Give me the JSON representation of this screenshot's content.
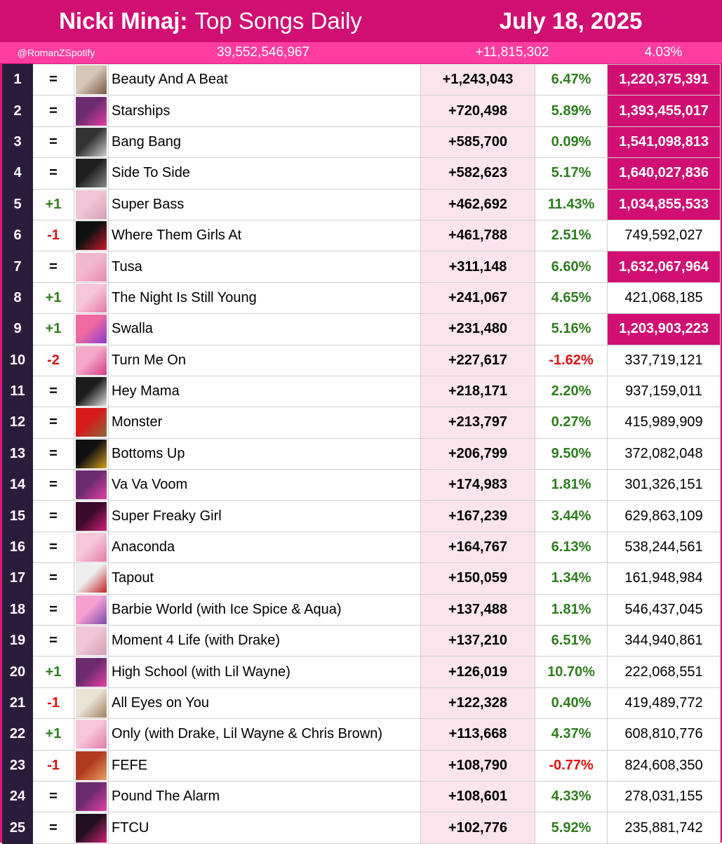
{
  "header": {
    "artist": "Nicki Minaj:",
    "title": "Top Songs Daily",
    "date": "July 18, 2025",
    "handle": "@RomanZSpotify",
    "total_streams": "39,552,546,967",
    "total_gain": "+11,815,302",
    "total_pct": "4.03%"
  },
  "colors": {
    "header": "#d10f72",
    "subheader": "#ff3da0",
    "rank_bg": "#2a1d3c",
    "daily_bg": "#fce4ec",
    "billion_highlight": "#d10f72",
    "up": "#2e7d1e",
    "down": "#e01010"
  },
  "rows": [
    {
      "rank": "1",
      "move": "=",
      "title": "Beauty And A Beat",
      "daily": "+1,243,043",
      "change": "6.47%",
      "total": "1,220,375,391",
      "billion": true,
      "cover": "cover-beauty-and-a-beat"
    },
    {
      "rank": "2",
      "move": "=",
      "title": "Starships",
      "daily": "+720,498",
      "change": "5.89%",
      "total": "1,393,455,017",
      "billion": true,
      "cover": "cover-pink-friday-re-up"
    },
    {
      "rank": "3",
      "move": "=",
      "title": "Bang Bang",
      "daily": "+585,700",
      "change": "0.09%",
      "total": "1,541,098,813",
      "billion": true,
      "cover": "cover-bang-bang"
    },
    {
      "rank": "4",
      "move": "=",
      "title": "Side To Side",
      "daily": "+582,623",
      "change": "5.17%",
      "total": "1,640,027,836",
      "billion": true,
      "cover": "cover-side-to-side"
    },
    {
      "rank": "5",
      "move": "+1",
      "title": "Super Bass",
      "daily": "+462,692",
      "change": "11.43%",
      "total": "1,034,855,533",
      "billion": true,
      "cover": "cover-pink-friday"
    },
    {
      "rank": "6",
      "move": "-1",
      "title": "Where Them Girls At",
      "daily": "+461,788",
      "change": "2.51%",
      "total": "749,592,027",
      "billion": false,
      "cover": "cover-where-them-girls-at"
    },
    {
      "rank": "7",
      "move": "=",
      "title": "Tusa",
      "daily": "+311,148",
      "change": "6.60%",
      "total": "1,632,067,964",
      "billion": true,
      "cover": "cover-tusa"
    },
    {
      "rank": "8",
      "move": "+1",
      "title": "The Night Is Still Young",
      "daily": "+241,067",
      "change": "4.65%",
      "total": "421,068,185",
      "billion": false,
      "cover": "cover-pinkprint"
    },
    {
      "rank": "9",
      "move": "+1",
      "title": "Swalla",
      "daily": "+231,480",
      "change": "5.16%",
      "total": "1,203,903,223",
      "billion": true,
      "cover": "cover-swalla"
    },
    {
      "rank": "10",
      "move": "-2",
      "title": "Turn Me On",
      "daily": "+227,617",
      "change": "-1.62%",
      "total": "337,719,121",
      "billion": false,
      "cover": "cover-turn-me-on"
    },
    {
      "rank": "11",
      "move": "=",
      "title": "Hey Mama",
      "daily": "+218,171",
      "change": "2.20%",
      "total": "937,159,011",
      "billion": false,
      "cover": "cover-hey-mama"
    },
    {
      "rank": "12",
      "move": "=",
      "title": "Monster",
      "daily": "+213,797",
      "change": "0.27%",
      "total": "415,989,909",
      "billion": false,
      "cover": "cover-monster"
    },
    {
      "rank": "13",
      "move": "=",
      "title": "Bottoms Up",
      "daily": "+206,799",
      "change": "9.50%",
      "total": "372,082,048",
      "billion": false,
      "cover": "cover-bottoms-up"
    },
    {
      "rank": "14",
      "move": "=",
      "title": "Va Va Voom",
      "daily": "+174,983",
      "change": "1.81%",
      "total": "301,326,151",
      "billion": false,
      "cover": "cover-pink-friday-re-up"
    },
    {
      "rank": "15",
      "move": "=",
      "title": "Super Freaky Girl",
      "daily": "+167,239",
      "change": "3.44%",
      "total": "629,863,109",
      "billion": false,
      "cover": "cover-super-freaky-girl"
    },
    {
      "rank": "16",
      "move": "=",
      "title": "Anaconda",
      "daily": "+164,767",
      "change": "6.13%",
      "total": "538,244,561",
      "billion": false,
      "cover": "cover-pinkprint"
    },
    {
      "rank": "17",
      "move": "=",
      "title": "Tapout",
      "daily": "+150,059",
      "change": "1.34%",
      "total": "161,948,984",
      "billion": false,
      "cover": "cover-tapout"
    },
    {
      "rank": "18",
      "move": "=",
      "title": "Barbie World (with Ice Spice & Aqua)",
      "daily": "+137,488",
      "change": "1.81%",
      "total": "546,437,045",
      "billion": false,
      "cover": "cover-barbie-world"
    },
    {
      "rank": "19",
      "move": "=",
      "title": "Moment 4 Life (with Drake)",
      "daily": "+137,210",
      "change": "6.51%",
      "total": "344,940,861",
      "billion": false,
      "cover": "cover-pink-friday"
    },
    {
      "rank": "20",
      "move": "+1",
      "title": "High School (with Lil Wayne)",
      "daily": "+126,019",
      "change": "10.70%",
      "total": "222,068,551",
      "billion": false,
      "cover": "cover-pink-friday-re-up"
    },
    {
      "rank": "21",
      "move": "-1",
      "title": "All Eyes on You",
      "daily": "+122,328",
      "change": "0.40%",
      "total": "419,489,772",
      "billion": false,
      "cover": "cover-all-eyes-on-you"
    },
    {
      "rank": "22",
      "move": "+1",
      "title": "Only (with Drake, Lil Wayne & Chris Brown)",
      "daily": "+113,668",
      "change": "4.37%",
      "total": "608,810,776",
      "billion": false,
      "cover": "cover-pinkprint"
    },
    {
      "rank": "23",
      "move": "-1",
      "title": "FEFE",
      "daily": "+108,790",
      "change": "-0.77%",
      "total": "824,608,350",
      "billion": false,
      "cover": "cover-fefe"
    },
    {
      "rank": "24",
      "move": "=",
      "title": "Pound The Alarm",
      "daily": "+108,601",
      "change": "4.33%",
      "total": "278,031,155",
      "billion": false,
      "cover": "cover-pink-friday-re-up"
    },
    {
      "rank": "25",
      "move": "=",
      "title": "FTCU",
      "daily": "+102,776",
      "change": "5.92%",
      "total": "235,881,742",
      "billion": false,
      "cover": "cover-ftcu"
    }
  ]
}
